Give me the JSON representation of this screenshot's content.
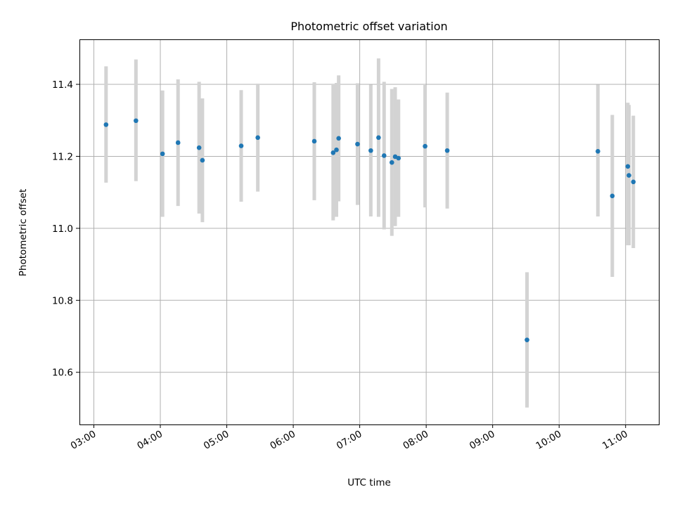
{
  "chart_data": {
    "type": "scatter",
    "title": "Photometric offset variation",
    "xlabel": "UTC time",
    "ylabel": "Photometric offset",
    "x_is_time": true,
    "xlim": [
      "02:47",
      "11:30"
    ],
    "ylim": [
      10.455,
      11.525
    ],
    "x_ticks": [
      "03:00",
      "04:00",
      "05:00",
      "06:00",
      "07:00",
      "08:00",
      "09:00",
      "10:00",
      "11:00"
    ],
    "y_ticks": [
      10.6,
      10.8,
      11.0,
      11.2,
      11.4
    ],
    "y_tick_labels": [
      "10.6",
      "10.8",
      "11.0",
      "11.2",
      "11.4"
    ],
    "grid": true,
    "colors": {
      "point": "#1f77b4",
      "errorbar": "#d3d3d3"
    },
    "points": [
      {
        "t": "03:11",
        "y": 11.288,
        "lo": 11.127,
        "hi": 11.45
      },
      {
        "t": "03:38",
        "y": 11.299,
        "lo": 11.131,
        "hi": 11.469
      },
      {
        "t": "04:02",
        "y": 11.207,
        "lo": 11.032,
        "hi": 11.383
      },
      {
        "t": "04:16",
        "y": 11.238,
        "lo": 11.062,
        "hi": 11.414
      },
      {
        "t": "04:35",
        "y": 11.224,
        "lo": 11.041,
        "hi": 11.407
      },
      {
        "t": "04:38",
        "y": 11.189,
        "lo": 11.017,
        "hi": 11.361
      },
      {
        "t": "05:13",
        "y": 11.229,
        "lo": 11.074,
        "hi": 11.384
      },
      {
        "t": "05:28",
        "y": 11.252,
        "lo": 11.102,
        "hi": 11.402
      },
      {
        "t": "06:19",
        "y": 11.242,
        "lo": 11.078,
        "hi": 11.406
      },
      {
        "t": "06:36",
        "y": 11.21,
        "lo": 11.022,
        "hi": 11.398
      },
      {
        "t": "06:39",
        "y": 11.218,
        "lo": 11.032,
        "hi": 11.404
      },
      {
        "t": "06:41",
        "y": 11.25,
        "lo": 11.075,
        "hi": 11.425
      },
      {
        "t": "06:58",
        "y": 11.234,
        "lo": 11.065,
        "hi": 11.403
      },
      {
        "t": "07:10",
        "y": 11.216,
        "lo": 11.033,
        "hi": 11.399
      },
      {
        "t": "07:17",
        "y": 11.252,
        "lo": 11.032,
        "hi": 11.472
      },
      {
        "t": "07:22",
        "y": 11.202,
        "lo": 10.997,
        "hi": 11.407
      },
      {
        "t": "07:29",
        "y": 11.183,
        "lo": 10.979,
        "hi": 11.387
      },
      {
        "t": "07:32",
        "y": 11.199,
        "lo": 11.006,
        "hi": 11.392
      },
      {
        "t": "07:35",
        "y": 11.195,
        "lo": 11.032,
        "hi": 11.358
      },
      {
        "t": "07:59",
        "y": 11.228,
        "lo": 11.058,
        "hi": 11.398
      },
      {
        "t": "08:19",
        "y": 11.216,
        "lo": 11.055,
        "hi": 11.377
      },
      {
        "t": "09:31",
        "y": 10.69,
        "lo": 10.502,
        "hi": 10.878
      },
      {
        "t": "10:35",
        "y": 11.214,
        "lo": 11.033,
        "hi": 11.399
      },
      {
        "t": "10:48",
        "y": 11.09,
        "lo": 10.865,
        "hi": 11.315
      },
      {
        "t": "11:02",
        "y": 11.172,
        "lo": 10.953,
        "hi": 11.349
      },
      {
        "t": "11:03",
        "y": 11.147,
        "lo": 10.953,
        "hi": 11.343
      },
      {
        "t": "11:07",
        "y": 11.129,
        "lo": 10.945,
        "hi": 11.313
      }
    ]
  }
}
